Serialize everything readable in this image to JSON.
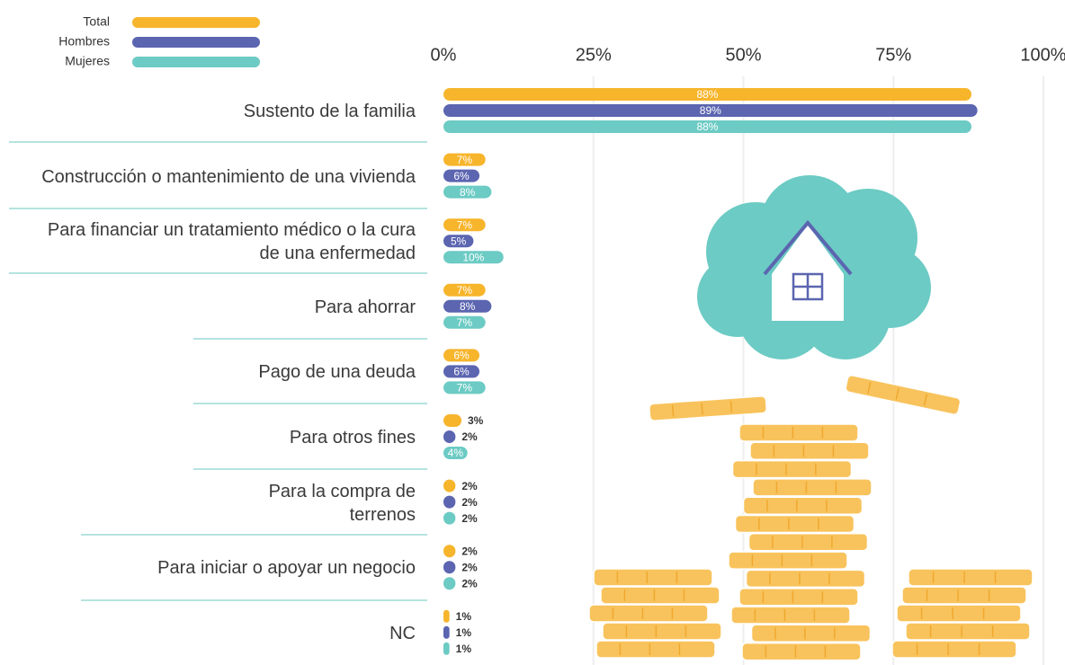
{
  "chart_data": {
    "type": "bar",
    "orientation": "horizontal",
    "categories": [
      "Sustento de la familia",
      "Construcción o mantenimiento de una vivienda",
      "Para financiar un tratamiento médico o la cura de una enfermedad",
      "Para ahorrar",
      "Pago de una deuda",
      "Para otros fines",
      "Para la compra de terrenos",
      "Para iniciar o apoyar un negocio",
      "NC"
    ],
    "series": [
      {
        "name": "Total",
        "color": "#f7b52c",
        "values": [
          88,
          7,
          7,
          7,
          6,
          3,
          2,
          2,
          1
        ],
        "value_labels": [
          "88%",
          "7%",
          "7%",
          "7%",
          "6%",
          "3%",
          "2%",
          "2%",
          "1%"
        ]
      },
      {
        "name": "Hombres",
        "color": "#5b65b0",
        "values": [
          89,
          6,
          5,
          8,
          6,
          2,
          2,
          2,
          1
        ],
        "value_labels": [
          "89%",
          "6%",
          "5%",
          "8%",
          "6%",
          "2%",
          "2%",
          "2%",
          "1%"
        ]
      },
      {
        "name": "Mujeres",
        "color": "#6ccbc4",
        "values": [
          88,
          8,
          10,
          7,
          7,
          4,
          2,
          2,
          1
        ],
        "value_labels": [
          "88%",
          "8%",
          "10%",
          "7%",
          "7%",
          "4%",
          "2%",
          "2%",
          "1%"
        ]
      }
    ],
    "xlim": [
      0,
      100
    ],
    "xticks": [
      {
        "value": 0,
        "label": "0%"
      },
      {
        "value": 25,
        "label": "25%"
      },
      {
        "value": 50,
        "label": "50%"
      },
      {
        "value": 75,
        "label": "75%"
      },
      {
        "value": 100,
        "label": "100%"
      }
    ],
    "grid": true,
    "legend": "top-left"
  }
}
